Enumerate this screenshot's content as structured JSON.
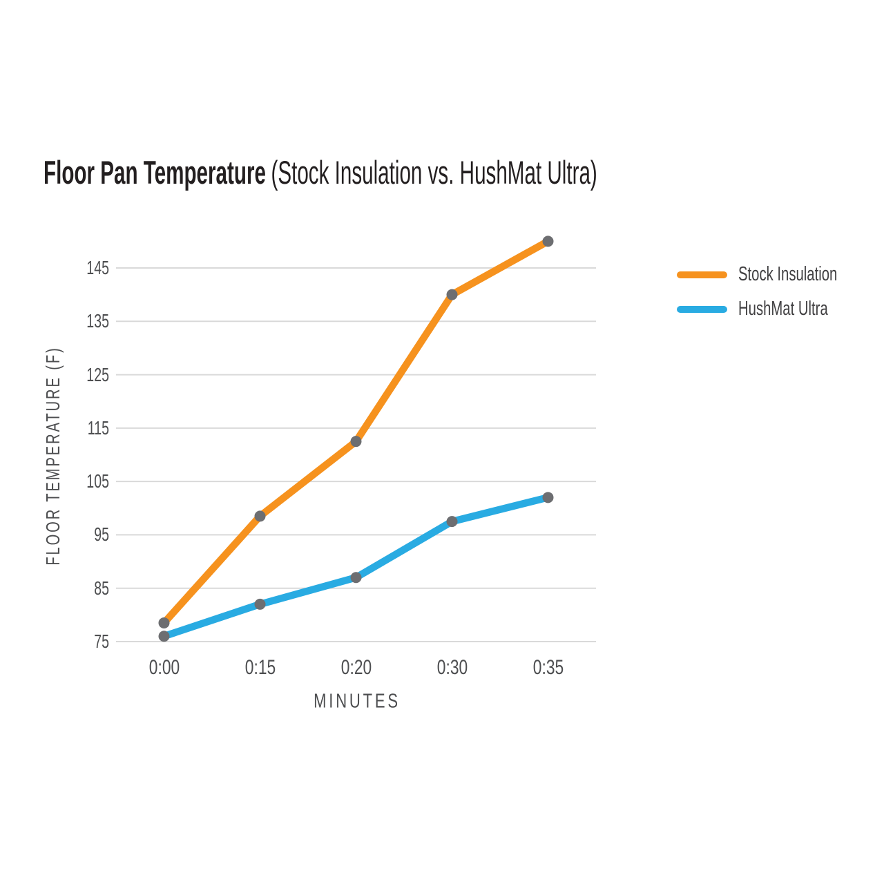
{
  "title": {
    "main": "Floor Pan Temperature",
    "paren": "(Stock Insulation vs. HushMat Ultra)"
  },
  "legend": {
    "items": [
      {
        "label": "Stock Insulation",
        "color": "#F6921E"
      },
      {
        "label": "HushMat Ultra",
        "color": "#29ABE2"
      }
    ]
  },
  "chart_data": {
    "type": "line",
    "title": "Floor Pan Temperature (Stock Insulation vs. HushMat Ultra)",
    "categories": [
      "0:00",
      "0:15",
      "0:20",
      "0:30",
      "0:35"
    ],
    "series": [
      {
        "name": "Stock Insulation",
        "color": "#F6921E",
        "values": [
          78.5,
          98.5,
          112.5,
          140,
          150
        ]
      },
      {
        "name": "HushMat Ultra",
        "color": "#29ABE2",
        "values": [
          76,
          82,
          87,
          97.5,
          102
        ]
      }
    ],
    "xlabel": "MINUTES",
    "ylabel": "FLOOR TEMPERATURE (F)",
    "yticks": [
      75,
      85,
      95,
      105,
      115,
      125,
      135,
      145
    ],
    "ylim": [
      75,
      152
    ],
    "grid": true,
    "grid_color": "#D9D9D9",
    "marker_color": "#6D6E71",
    "legend_position": "right"
  }
}
